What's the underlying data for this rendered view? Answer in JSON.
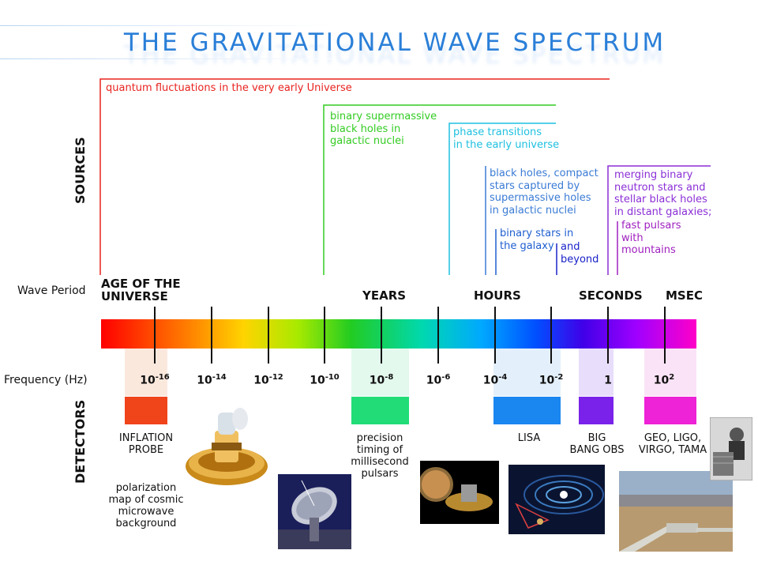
{
  "title": "THE GRAVITATIONAL WAVE SPECTRUM",
  "axis_labels": {
    "sources": "SOURCES",
    "wave_period": "Wave Period",
    "frequency": "Frequency (Hz)",
    "detectors": "DETECTORS"
  },
  "sources": [
    {
      "text": "quantum fluctuations in the very early Universe",
      "color": "#e8231f"
    },
    {
      "text": "binary supermassive black holes in galactic nuclei",
      "lines": [
        "binary supermassive",
        "black holes in",
        "galactic nuclei"
      ],
      "color": "#33cc22"
    },
    {
      "text": "phase transitions in the early universe",
      "lines": [
        "phase transitions",
        "in the early universe"
      ],
      "color": "#1ec0e0"
    },
    {
      "text": "black holes, compact stars captured by supermassive holes in galactic nuclei",
      "lines": [
        "black holes, compact",
        "stars captured by",
        "supermassive holes",
        "in galactic nuclei"
      ],
      "color": "#3a7bd5"
    },
    {
      "text": "binary stars in the galaxy",
      "lines": [
        "binary stars in",
        "the galaxy"
      ],
      "color": "#1f5fd0"
    },
    {
      "text": "and beyond",
      "lines": [
        "and",
        "beyond"
      ],
      "color": "#1a22c8"
    },
    {
      "text": "merging binary neutron stars and stellar black holes in distant galaxies;",
      "lines": [
        "merging binary",
        "neutron stars and",
        "stellar black holes",
        "in distant galaxies;"
      ],
      "color": "#8b2fd6"
    },
    {
      "text": "fast pulsars with mountains",
      "lines": [
        "fast pulsars",
        "with",
        "mountains"
      ],
      "color": "#a020c0"
    }
  ],
  "periods": [
    {
      "lines": [
        "AGE OF THE",
        "UNIVERSE"
      ]
    },
    {
      "lines": [
        "YEARS"
      ]
    },
    {
      "lines": [
        "HOURS"
      ]
    },
    {
      "lines": [
        "SECONDS"
      ]
    },
    {
      "lines": [
        "MSEC"
      ]
    }
  ],
  "frequencies": [
    {
      "base": "10",
      "exp": "-16"
    },
    {
      "base": "10",
      "exp": "-14"
    },
    {
      "base": "10",
      "exp": "-12"
    },
    {
      "base": "10",
      "exp": "-10"
    },
    {
      "base": "10",
      "exp": "-8"
    },
    {
      "base": "10",
      "exp": "-6"
    },
    {
      "base": "10",
      "exp": "-4"
    },
    {
      "base": "10",
      "exp": "-2"
    },
    {
      "base": "1",
      "exp": ""
    },
    {
      "base": "10",
      "exp": "2"
    }
  ],
  "detectors": [
    {
      "name": "inflation-probe",
      "lines": [
        "INFLATION",
        "PROBE"
      ],
      "color": "#f0441a"
    },
    {
      "name": "pulsar-timing",
      "lines": [
        "precision",
        "timing of",
        "millisecond",
        "pulsars"
      ],
      "color": "#22dd77"
    },
    {
      "name": "lisa",
      "lines": [
        "LISA"
      ],
      "color": "#1a86f0"
    },
    {
      "name": "big-bang-obs",
      "lines": [
        "BIG",
        "BANG OBS"
      ],
      "color": "#7a22ea"
    },
    {
      "name": "ground-detectors",
      "lines": [
        "GEO, LIGO,",
        "VIRGO, TAMA"
      ],
      "color": "#ee22d6"
    }
  ],
  "cmb_note": [
    "polarization",
    "map of cosmic",
    "microwave",
    "background"
  ]
}
